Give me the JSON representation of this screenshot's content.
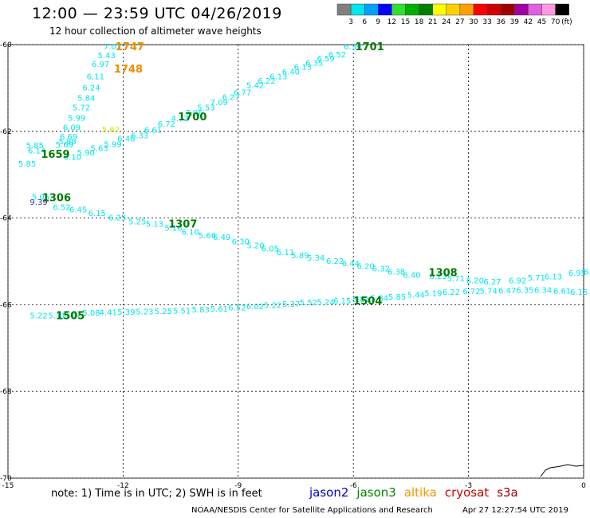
{
  "header": {
    "title": "12:00 — 23:59 UTC 04/26/2019",
    "subtitle": "12 hour collection of altimeter wave heights"
  },
  "legend": {
    "ticks": [
      "3",
      "6",
      "9",
      "12",
      "15",
      "18",
      "21",
      "24",
      "27",
      "30",
      "33",
      "36",
      "39",
      "42",
      "45",
      "70"
    ],
    "unit": "(ft)",
    "colors": [
      "#808080",
      "#00e5ee",
      "#00a0ff",
      "#0000ff",
      "#30e030",
      "#00b000",
      "#008000",
      "#ffff00",
      "#ffd000",
      "#ffa000",
      "#ff0000",
      "#d00000",
      "#a00000",
      "#a000a0",
      "#e060e0",
      "#ff99dd",
      "#000000"
    ]
  },
  "axes": {
    "lat_labels": [
      "-60",
      "-62",
      "-64",
      "-66",
      "-68",
      "-70"
    ],
    "lon_labels": [
      "-15",
      "-12",
      "-9",
      "-6",
      "-3",
      "0"
    ]
  },
  "tracks": [
    {
      "color": "#00e5ee",
      "values": [
        {
          "t": "7.02",
          "lon": -12.51,
          "lat": -60.04
        },
        {
          "t": "5.43",
          "lon": -12.66,
          "lat": -60.24
        },
        {
          "t": "6.97",
          "lon": -12.82,
          "lat": -60.44
        },
        {
          "t": "6.11",
          "lon": -12.95,
          "lat": -60.73
        },
        {
          "t": "6.24",
          "lon": -13.06,
          "lat": -60.98
        },
        {
          "t": "5.84",
          "lon": -13.19,
          "lat": -61.22
        },
        {
          "t": "5.72",
          "lon": -13.32,
          "lat": -61.44
        },
        {
          "t": "5.99",
          "lon": -13.44,
          "lat": -61.68
        },
        {
          "t": "6.09",
          "lon": -13.57,
          "lat": -61.9
        },
        {
          "t": "6.69",
          "lon": -13.65,
          "lat": -62.11
        },
        {
          "t": "5.88",
          "lon": -13.68,
          "lat": -62.22
        },
        {
          "t": "5.69",
          "lon": -13.76,
          "lat": -62.3
        },
        {
          "t": "5.85",
          "lon": -14.53,
          "lat": -62.32
        },
        {
          "t": "6.14",
          "lon": -14.48,
          "lat": -62.44
        },
        {
          "t": "5.85",
          "lon": -14.73,
          "lat": -62.74
        }
      ]
    },
    {
      "color": "#00e5ee",
      "values": [
        {
          "t": "6.39",
          "lon": -6.25,
          "lat": -60.04
        },
        {
          "t": "6.52",
          "lon": -6.65,
          "lat": -60.22
        },
        {
          "t": "6.59",
          "lon": -6.95,
          "lat": -60.31
        },
        {
          "t": "6.35",
          "lon": -7.25,
          "lat": -60.41
        },
        {
          "t": "6.13",
          "lon": -7.55,
          "lat": -60.51
        },
        {
          "t": "6.40",
          "lon": -7.86,
          "lat": -60.62
        },
        {
          "t": "6.13",
          "lon": -8.18,
          "lat": -60.73
        },
        {
          "t": "6.22",
          "lon": -8.49,
          "lat": -60.83
        },
        {
          "t": "5.42",
          "lon": -8.79,
          "lat": -60.93
        },
        {
          "t": "6.77",
          "lon": -9.12,
          "lat": -61.09
        },
        {
          "t": "6.27",
          "lon": -9.42,
          "lat": -61.2
        },
        {
          "t": "7.09",
          "lon": -9.73,
          "lat": -61.32
        },
        {
          "t": "5.53",
          "lon": -10.07,
          "lat": -61.44
        },
        {
          "t": "7.06",
          "lon": -10.38,
          "lat": -61.56
        },
        {
          "t": "4.72",
          "lon": -10.75,
          "lat": -61.69
        },
        {
          "t": "6.72",
          "lon": -11.1,
          "lat": -61.82
        },
        {
          "t": "6.61",
          "lon": -11.45,
          "lat": -61.96
        },
        {
          "t": "6.33",
          "lon": -11.8,
          "lat": -62.09
        },
        {
          "t": "6.46",
          "lon": -12.15,
          "lat": -62.16
        },
        {
          "t": "5.99",
          "lon": -12.5,
          "lat": -62.29
        },
        {
          "t": "5.63",
          "lon": -12.85,
          "lat": -62.38
        },
        {
          "t": "5.90",
          "lon": -13.2,
          "lat": -62.48
        },
        {
          "t": "6.10",
          "lon": -13.55,
          "lat": -62.58
        }
      ]
    },
    {
      "color": "#00e5ee",
      "values": [
        {
          "t": "5.06",
          "lon": -14.38,
          "lat": -63.5
        },
        {
          "t": "6.52",
          "lon": -13.83,
          "lat": -63.74
        },
        {
          "t": "6.45",
          "lon": -13.4,
          "lat": -63.8
        },
        {
          "t": "6.15",
          "lon": -12.91,
          "lat": -63.88
        },
        {
          "t": "6.25",
          "lon": -12.38,
          "lat": -63.98
        },
        {
          "t": "5.25",
          "lon": -11.86,
          "lat": -64.07
        },
        {
          "t": "5.13",
          "lon": -11.41,
          "lat": -64.13
        },
        {
          "t": "5.16",
          "lon": -10.92,
          "lat": -64.22
        },
        {
          "t": "6.10",
          "lon": -10.48,
          "lat": -64.31
        },
        {
          "t": "5.66",
          "lon": -10.04,
          "lat": -64.39
        },
        {
          "t": "6.49",
          "lon": -9.66,
          "lat": -64.43
        },
        {
          "t": "6.30",
          "lon": -9.17,
          "lat": -64.53
        },
        {
          "t": "5.20",
          "lon": -8.78,
          "lat": -64.62
        },
        {
          "t": "6.05",
          "lon": -8.4,
          "lat": -64.7
        },
        {
          "t": "6.11",
          "lon": -8.0,
          "lat": -64.78
        },
        {
          "t": "5.89",
          "lon": -7.62,
          "lat": -64.85
        },
        {
          "t": "5.34",
          "lon": -7.21,
          "lat": -64.91
        },
        {
          "t": "6.22",
          "lon": -6.71,
          "lat": -64.98
        },
        {
          "t": "6.44",
          "lon": -6.3,
          "lat": -65.04
        },
        {
          "t": "6.20",
          "lon": -5.91,
          "lat": -65.1
        },
        {
          "t": "6.32",
          "lon": -5.51,
          "lat": -65.16
        },
        {
          "t": "6.38",
          "lon": -5.11,
          "lat": -65.23
        },
        {
          "t": "6.40",
          "lon": -4.71,
          "lat": -65.3
        },
        {
          "t": "6.23",
          "lon": -4.02,
          "lat": -65.33
        },
        {
          "t": "5.71",
          "lon": -3.56,
          "lat": -65.39
        },
        {
          "t": "6.20",
          "lon": -3.06,
          "lat": -65.43
        },
        {
          "t": "6.27",
          "lon": -2.61,
          "lat": -65.46
        },
        {
          "t": "6.92",
          "lon": -1.95,
          "lat": -65.43
        },
        {
          "t": "5.71",
          "lon": -1.46,
          "lat": -65.37
        },
        {
          "t": "6.13",
          "lon": -1.02,
          "lat": -65.34
        },
        {
          "t": "6.95",
          "lon": -0.4,
          "lat": -65.26
        },
        {
          "t": "6.38",
          "lon": 0.0,
          "lat": -65.23
        }
      ]
    },
    {
      "color": "#00e5ee",
      "values": [
        {
          "t": "5.22",
          "lon": -14.43,
          "lat": -66.24
        },
        {
          "t": "5.11",
          "lon": -13.95,
          "lat": -66.24
        },
        {
          "t": "5.62",
          "lon": -13.54,
          "lat": -66.2
        },
        {
          "t": "5.08",
          "lon": -13.06,
          "lat": -66.18
        },
        {
          "t": "4.41",
          "lon": -12.62,
          "lat": -66.17
        },
        {
          "t": "5.39",
          "lon": -12.15,
          "lat": -66.16
        },
        {
          "t": "5.23",
          "lon": -11.67,
          "lat": -66.15
        },
        {
          "t": "5.25",
          "lon": -11.18,
          "lat": -66.14
        },
        {
          "t": "5.51",
          "lon": -10.7,
          "lat": -66.13
        },
        {
          "t": "5.83",
          "lon": -10.21,
          "lat": -66.1
        },
        {
          "t": "5.61",
          "lon": -9.73,
          "lat": -66.08
        },
        {
          "t": "6.52",
          "lon": -9.26,
          "lat": -66.06
        },
        {
          "t": "6.02",
          "lon": -8.79,
          "lat": -66.03
        },
        {
          "t": "5.22",
          "lon": -8.33,
          "lat": -66.0
        },
        {
          "t": "5.37",
          "lon": -7.85,
          "lat": -65.97
        },
        {
          "t": "5.52",
          "lon": -7.4,
          "lat": -65.94
        },
        {
          "t": "5.24",
          "lon": -6.95,
          "lat": -65.93
        },
        {
          "t": "6.15",
          "lon": -6.52,
          "lat": -65.9
        },
        {
          "t": "5.81",
          "lon": -6.03,
          "lat": -65.86
        },
        {
          "t": "5.84",
          "lon": -5.55,
          "lat": -65.84
        },
        {
          "t": "5.85",
          "lon": -5.09,
          "lat": -65.81
        },
        {
          "t": "5.44",
          "lon": -4.6,
          "lat": -65.76
        },
        {
          "t": "5.19",
          "lon": -4.15,
          "lat": -65.73
        },
        {
          "t": "6.22",
          "lon": -3.68,
          "lat": -65.7
        },
        {
          "t": "6.72",
          "lon": -3.15,
          "lat": -65.68
        },
        {
          "t": "5.74",
          "lon": -2.71,
          "lat": -65.67
        },
        {
          "t": "6.47",
          "lon": -2.22,
          "lat": -65.66
        },
        {
          "t": "6.35",
          "lon": -1.76,
          "lat": -65.65
        },
        {
          "t": "6.34",
          "lon": -1.29,
          "lat": -65.65
        },
        {
          "t": "6.61",
          "lon": -0.79,
          "lat": -65.67
        },
        {
          "t": "6.15",
          "lon": -0.35,
          "lat": -65.7
        }
      ]
    },
    {
      "color": "#ccee00",
      "values": [
        {
          "t": "5.62",
          "lon": -12.55,
          "lat": -61.95
        }
      ]
    },
    {
      "color": "#3333aa",
      "values": [
        {
          "t": "9.39",
          "lon": -14.43,
          "lat": -63.62
        }
      ]
    }
  ],
  "time_labels": [
    {
      "t": "1747",
      "lon": -12.2,
      "lat": -60.04,
      "color": "#e88e00"
    },
    {
      "t": "1748",
      "lon": -12.24,
      "lat": -60.55,
      "color": "#e88e00"
    },
    {
      "t": "1701",
      "lon": -5.95,
      "lat": -60.04,
      "color": "#007a00"
    },
    {
      "t": "1700",
      "lon": -10.57,
      "lat": -61.65,
      "color": "#007a00"
    },
    {
      "t": "1659",
      "lon": -14.14,
      "lat": -62.52,
      "color": "#007a00"
    },
    {
      "t": "1306",
      "lon": -14.11,
      "lat": -63.52,
      "color": "#007a00"
    },
    {
      "t": "1307",
      "lon": -10.82,
      "lat": -64.13,
      "color": "#007a00"
    },
    {
      "t": "1308",
      "lon": -4.04,
      "lat": -65.25,
      "color": "#007a00"
    },
    {
      "t": "1504",
      "lon": -6.0,
      "lat": -65.9,
      "color": "#007a00"
    },
    {
      "t": "1505",
      "lon": -13.75,
      "lat": -66.24,
      "color": "#007a00"
    }
  ],
  "footer": {
    "note": "note: 1) Time is in UTC; 2) SWH is in feet",
    "satellites": [
      {
        "name": "jason2",
        "color": "#0000cc"
      },
      {
        "name": "jason3",
        "color": "#008800"
      },
      {
        "name": "altika",
        "color": "#ee9900"
      },
      {
        "name": "cryosat",
        "color": "#cc0000"
      },
      {
        "name": "s3a",
        "color": "#990000"
      }
    ],
    "credit": "NOAA/NESDIS Center for Satellite Applications and Research",
    "timestamp": "Apr 27 12:27:54 UTC 2019"
  }
}
